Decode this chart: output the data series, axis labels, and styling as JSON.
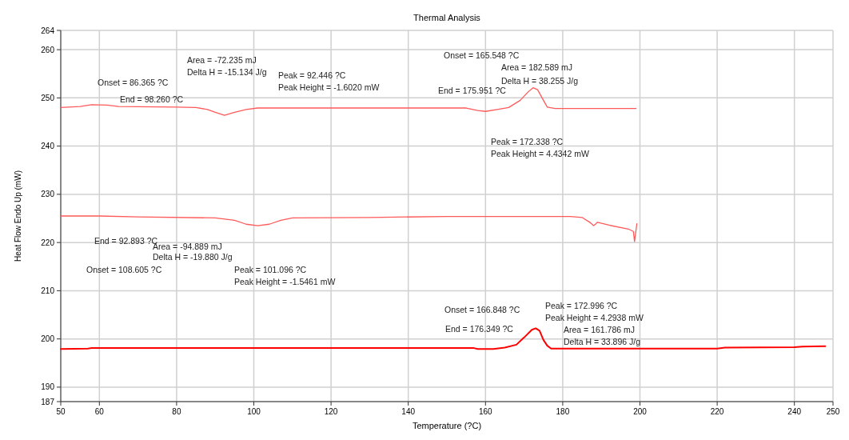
{
  "chart_data": {
    "type": "line",
    "title": "Thermal Analysis",
    "xlabel": "Temperature (?C)",
    "ylabel": "Heat Flow Endo Up (mW)",
    "xlim": [
      50,
      250
    ],
    "xticks": [
      50,
      60,
      80,
      100,
      120,
      140,
      160,
      180,
      200,
      220,
      240,
      250
    ],
    "ylim": [
      187,
      264
    ],
    "yticks": [
      187,
      190,
      200,
      210,
      220,
      230,
      240,
      250,
      260,
      264
    ],
    "grid": true,
    "marker": "none",
    "line_style": "solid",
    "series": [
      {
        "color": "#ff5a5a",
        "x": [
          50,
          55,
          58,
          62,
          65,
          80,
          85,
          88,
          90,
          92.4,
          95,
          98,
          101,
          120,
          140,
          155,
          158,
          160,
          163,
          166,
          169,
          171,
          172.3,
          173.5,
          175,
          176,
          178,
          199
        ],
        "values": [
          248.0,
          248.2,
          248.6,
          248.5,
          248.2,
          248.1,
          248.0,
          247.6,
          247.0,
          246.4,
          247.0,
          247.6,
          247.9,
          247.9,
          247.9,
          247.9,
          247.4,
          247.2,
          247.6,
          248.0,
          249.5,
          251.2,
          252.1,
          251.7,
          249.5,
          248.1,
          247.8,
          247.8
        ]
      },
      {
        "color": "#ff5a5a",
        "x": [
          50,
          60,
          70,
          90,
          95,
          98,
          101,
          104,
          107,
          110,
          130,
          150,
          170,
          182,
          185,
          187,
          188,
          188.6,
          189,
          192,
          197,
          198.3,
          198.6,
          199.2
        ],
        "values": [
          225.5,
          225.5,
          225.3,
          225.1,
          224.6,
          223.8,
          223.5,
          223.8,
          224.6,
          225.1,
          225.2,
          225.4,
          225.4,
          225.4,
          225.2,
          224.2,
          223.5,
          223.9,
          224.2,
          223.6,
          222.8,
          222.3,
          220.2,
          223.9
        ]
      },
      {
        "color": "#ff0000",
        "x": [
          50,
          57,
          58,
          100,
          157,
          158,
          162,
          165,
          168,
          170,
          172,
          173,
          174,
          175,
          176,
          177,
          200,
          220,
          222,
          240,
          242,
          248
        ],
        "values": [
          197.9,
          198.0,
          198.1,
          198.1,
          198.1,
          197.9,
          197.9,
          198.2,
          198.8,
          200.3,
          201.9,
          202.2,
          201.7,
          199.8,
          198.6,
          198.0,
          198.0,
          198.0,
          198.2,
          198.3,
          198.4,
          198.5
        ]
      }
    ],
    "annotations": [
      "Area = -72.235 mJ",
      "Delta H = -15.134 J/g",
      "Onset = 86.365 ?C",
      "Peak = 92.446 ?C",
      "Peak Height = -1.6020 mW",
      "End = 98.260 ?C",
      "Onset = 165.548 ?C",
      "Area = 182.589 mJ",
      "Delta H = 38.255 J/g",
      "End = 175.951 ?C",
      "Peak = 172.338 ?C",
      "Peak Height = 4.4342 mW",
      "End = 92.893 ?C",
      "Area = -94.889 mJ",
      "Delta H = -19.880 J/g",
      "Onset = 108.605 ?C",
      "Peak = 101.096 ?C",
      "Peak Height = -1.5461 mW",
      "Onset = 166.848 ?C",
      "Peak = 172.996 ?C",
      "Peak Height = 4.2938 mW",
      "End = 176.349 ?C",
      "Area = 161.786 mJ",
      "Delta H = 33.896 J/g"
    ]
  }
}
